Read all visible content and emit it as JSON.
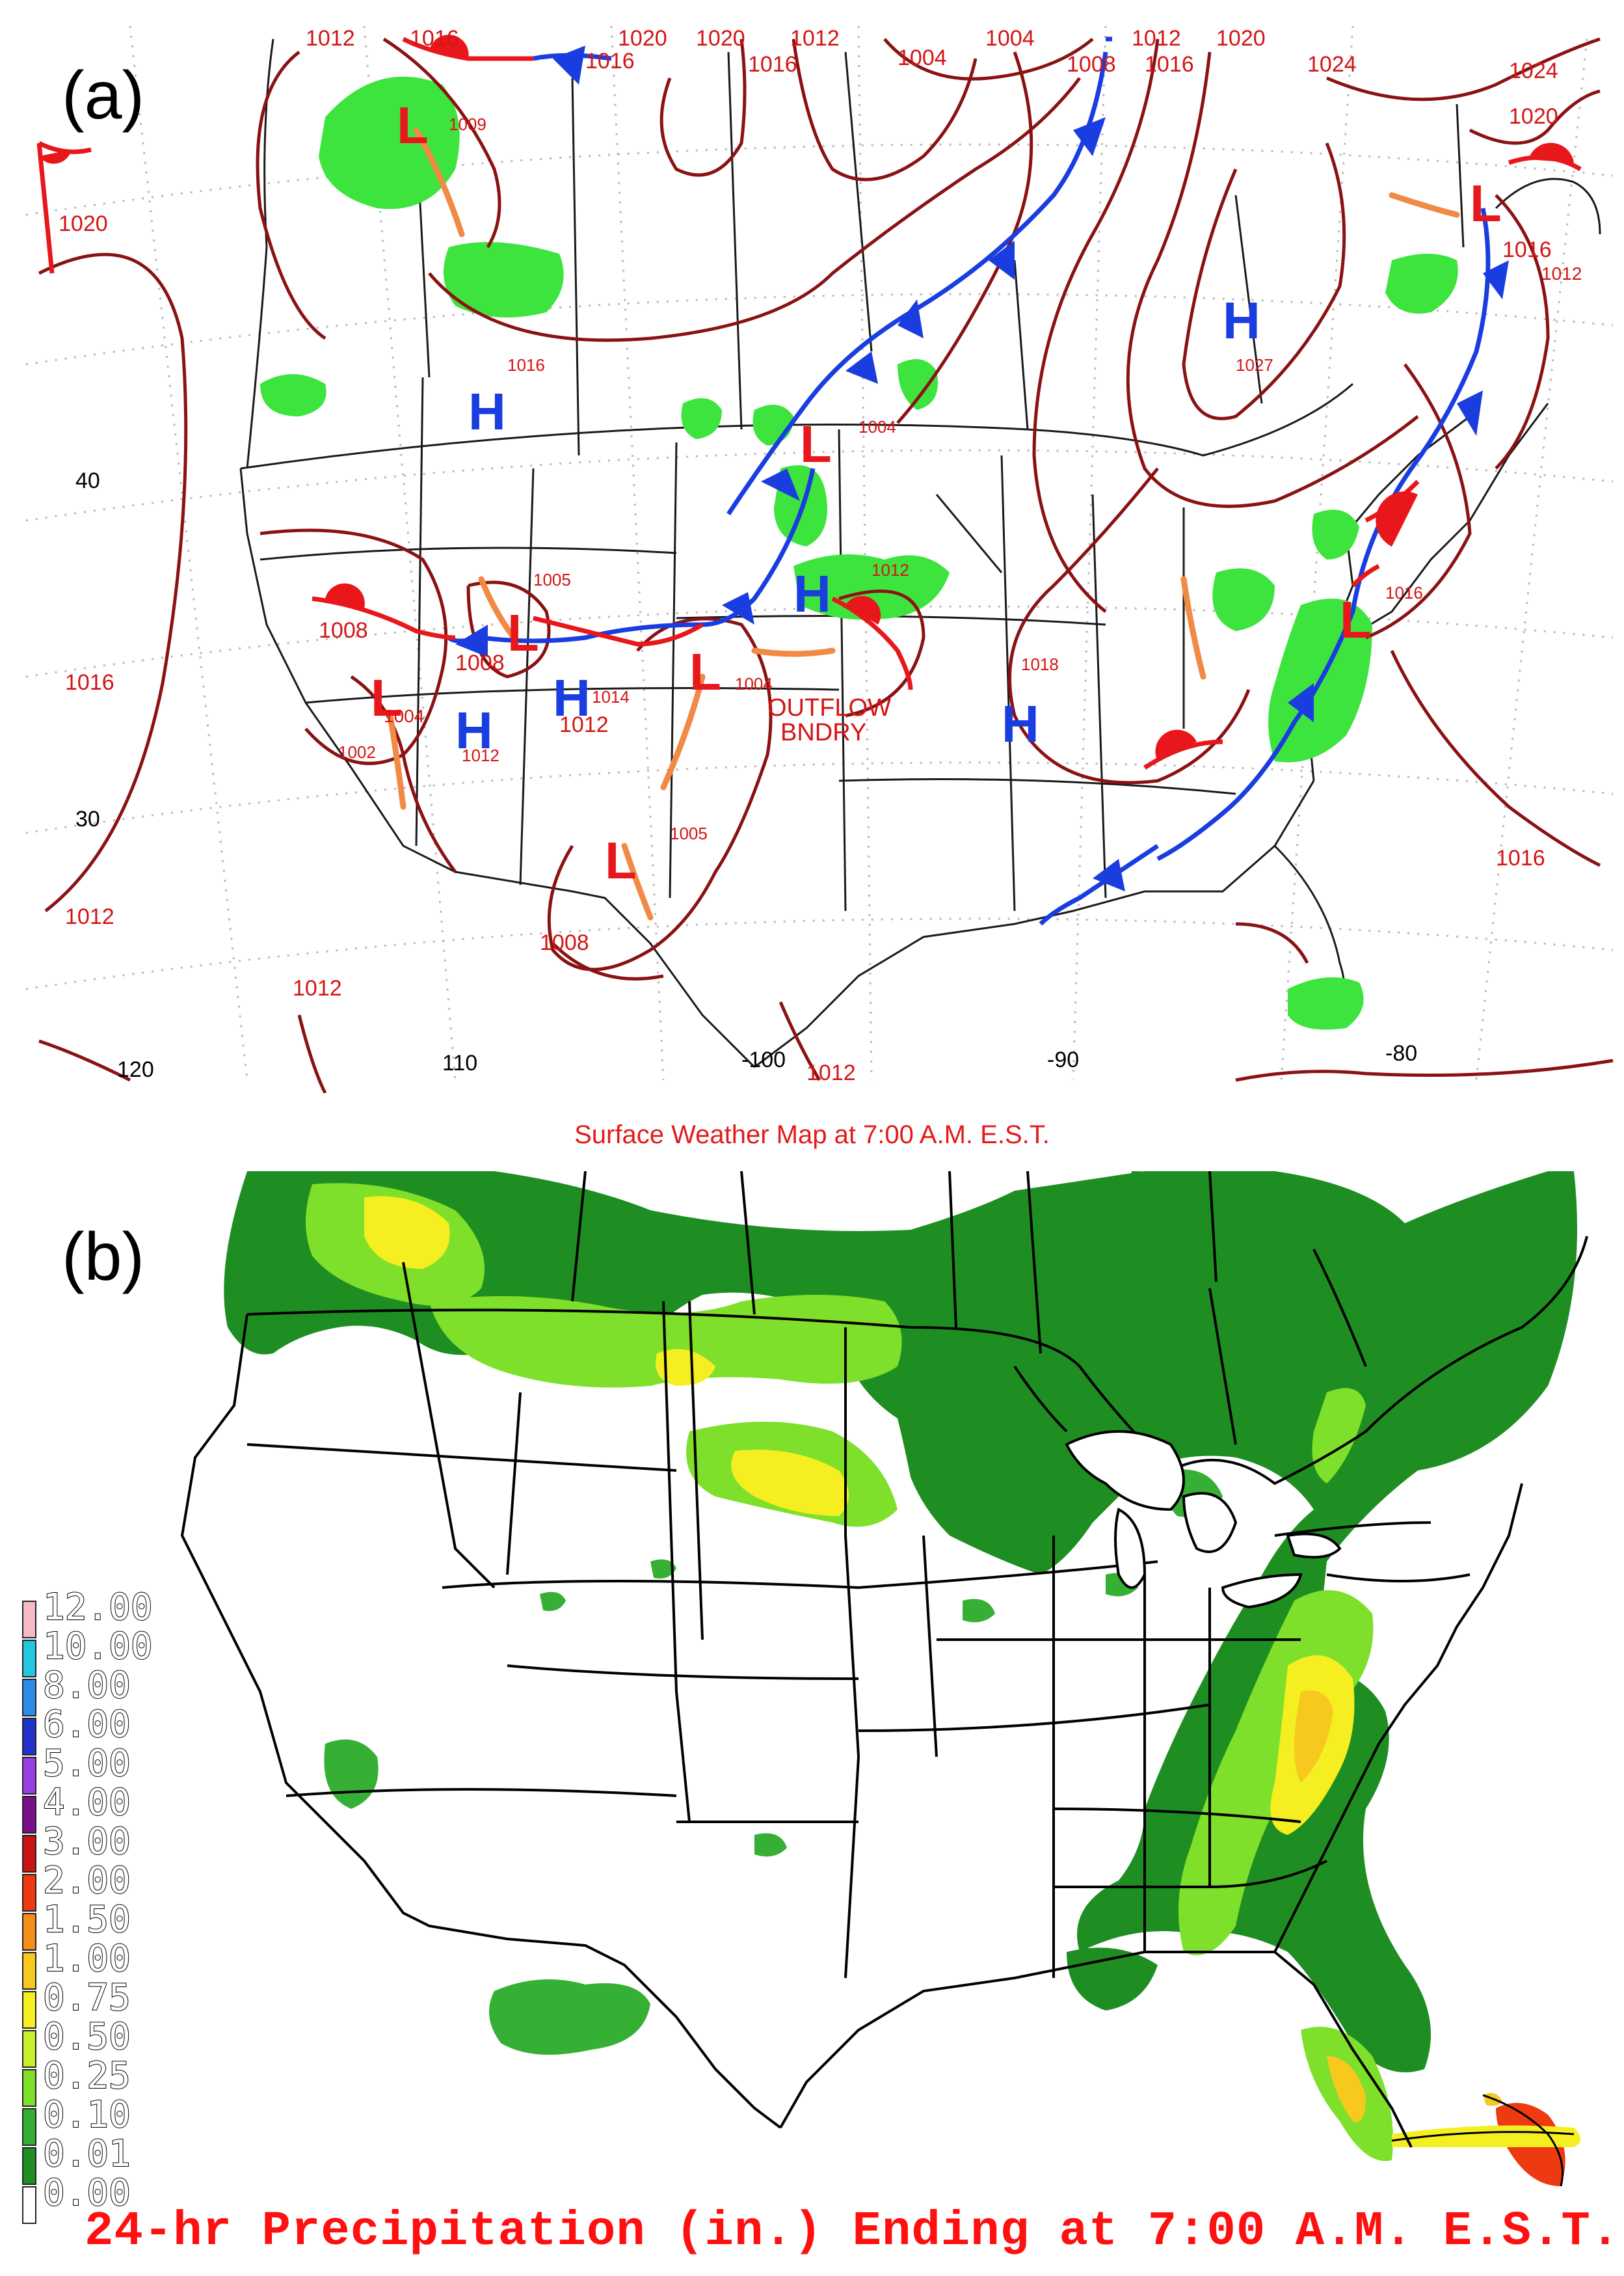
{
  "panel_a": {
    "label": "(a)",
    "caption": "Surface Weather Map at 7:00 A.M. E.S.T.",
    "lat_labels": [
      "40",
      "30"
    ],
    "lon_labels": [
      "120",
      "110",
      "-100",
      "-90",
      "-80"
    ],
    "high_symbol": "H",
    "low_symbol": "L",
    "annotation": [
      "OUTFLOW",
      "BNDRY"
    ],
    "pressure_labels": [
      "1012",
      "1016",
      "1020",
      "1020",
      "1012",
      "1004",
      "1004",
      "1012",
      "1020",
      "1016",
      "1008",
      "1016",
      "1024",
      "1024",
      "1020",
      "1016",
      "1012",
      "1009",
      "1020",
      "1016",
      "1016",
      "1004",
      "1027",
      "1012",
      "1005",
      "1008",
      "1008",
      "1004",
      "1002",
      "1012",
      "1014",
      "1012",
      "1004",
      "1018",
      "1016",
      "1005",
      "1008",
      "1012",
      "1016",
      "1012",
      "1016",
      "1012"
    ],
    "colors": {
      "isobar": "#8b1212",
      "cold_front": "#1a3de0",
      "warm_front": "#e8171c",
      "trough": "#f08a45",
      "precip": "#3ee43e",
      "label": "#d41414"
    }
  },
  "panel_b": {
    "label": "(b)",
    "caption": "24-hr Precipitation (in.) Ending at 7:00 A.M. E.S.T.",
    "legend": [
      {
        "label": "12.00",
        "color": "#f5b9c8"
      },
      {
        "label": "10.00",
        "color": "#22c8e0"
      },
      {
        "label": "8.00",
        "color": "#2a8de8"
      },
      {
        "label": "6.00",
        "color": "#2233cc"
      },
      {
        "label": "5.00",
        "color": "#9a3ee6"
      },
      {
        "label": "4.00",
        "color": "#7a0f8a"
      },
      {
        "label": "3.00",
        "color": "#c81414"
      },
      {
        "label": "2.00",
        "color": "#ee3a10"
      },
      {
        "label": "1.50",
        "color": "#f58e18"
      },
      {
        "label": "1.00",
        "color": "#f7c81e"
      },
      {
        "label": "0.75",
        "color": "#f5ee20"
      },
      {
        "label": "0.50",
        "color": "#c6f02a"
      },
      {
        "label": "0.25",
        "color": "#7ee02a"
      },
      {
        "label": "0.10",
        "color": "#36b034"
      },
      {
        "label": "0.01",
        "color": "#1f8e22"
      },
      {
        "label": "0.00",
        "color": "#ffffff"
      }
    ]
  }
}
